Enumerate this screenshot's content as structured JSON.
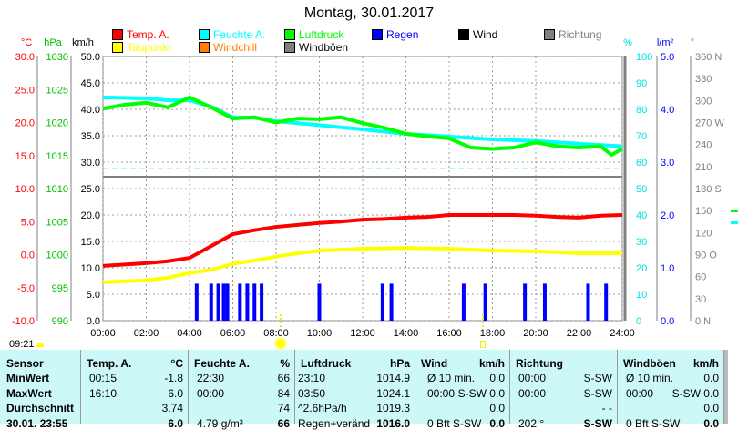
{
  "title": "Montag, 30.01.2017",
  "axis_units": {
    "temp": "°C",
    "pressure": "hPa",
    "wind": "km/h",
    "humidity": "%",
    "rain": "l/m²",
    "direction": "°"
  },
  "legend": [
    {
      "label": "Temp. A.",
      "color": "#ff0000"
    },
    {
      "label": "Feuchte A.",
      "color": "#00ffff"
    },
    {
      "label": "Luftdruck",
      "color": "#00ff00"
    },
    {
      "label": "Regen",
      "color": "#0000ff"
    },
    {
      "label": "Wind",
      "color": "#000000"
    },
    {
      "label": "Richtung",
      "color": "#808080"
    },
    {
      "label": "Taupunkt",
      "color": "#ffff00"
    },
    {
      "label": "Windchill",
      "color": "#ff8000"
    },
    {
      "label": "Windböen",
      "color": "#808080"
    }
  ],
  "chart_data": {
    "type": "line",
    "title": "Montag, 30.01.2017",
    "x_ticks": [
      "00:00",
      "02:00",
      "04:00",
      "06:00",
      "08:00",
      "10:00",
      "12:00",
      "14:00",
      "16:00",
      "18:00",
      "20:00",
      "22:00",
      "24:00"
    ],
    "temp_ticks": [
      "30.0",
      "25.0",
      "20.0",
      "15.0",
      "10.0",
      "5.0",
      "0.0",
      "-5.0",
      "-10.0"
    ],
    "pressure_ticks": [
      "1030",
      "1025",
      "1020",
      "1015",
      "1010",
      "1005",
      "1000",
      "995",
      "990"
    ],
    "wind_ticks": [
      "50.0",
      "45.0",
      "40.0",
      "35.0",
      "30.0",
      "25.0",
      "20.0",
      "15.0",
      "10.0",
      "5.0",
      "0.0"
    ],
    "humidity_ticks": [
      "100",
      "90",
      "80",
      "70",
      "60",
      "50",
      "40",
      "30",
      "20",
      "10",
      "0"
    ],
    "rain_ticks": [
      "5.0",
      "4.0",
      "3.0",
      "2.0",
      "1.0",
      "0.0"
    ],
    "direction_ticks": [
      "360 N",
      "330",
      "300",
      "270 W",
      "240",
      "210",
      "180 S",
      "150",
      "120",
      "90  O",
      "60",
      "30",
      "0    N"
    ],
    "ylim_temp": [
      -10,
      30
    ],
    "ylim_pressure": [
      990,
      1030
    ],
    "ylim_humidity": [
      0,
      100
    ],
    "ylim_rain": [
      0,
      5
    ],
    "series": [
      {
        "name": "Temp. A.",
        "color": "#ff0000",
        "x": [
          0,
          2,
          3,
          4,
          5,
          6,
          7,
          8,
          9,
          10,
          11,
          12,
          13,
          14,
          15,
          16,
          17,
          18,
          19,
          20,
          21,
          22,
          23,
          24
        ],
        "values": [
          -1.7,
          -1.3,
          -1.0,
          -0.5,
          1.3,
          3.1,
          3.7,
          4.2,
          4.5,
          4.8,
          5.0,
          5.3,
          5.4,
          5.6,
          5.7,
          6.0,
          6.0,
          6.0,
          6.0,
          5.9,
          5.7,
          5.6,
          5.9,
          6.0
        ]
      },
      {
        "name": "Taupunkt",
        "color": "#ffff00",
        "x": [
          0,
          2,
          3,
          4,
          5,
          6,
          7,
          8,
          9,
          10,
          12,
          14,
          16,
          18,
          20,
          22,
          24
        ],
        "values": [
          -4.2,
          -3.9,
          -3.5,
          -2.8,
          -2.3,
          -1.4,
          -0.9,
          -0.3,
          0.2,
          0.6,
          0.9,
          1.0,
          0.9,
          0.6,
          0.5,
          0.2,
          0.2
        ]
      },
      {
        "name": "Feuchte A.",
        "color": "#00ffff",
        "x": [
          0,
          2,
          3,
          4,
          5,
          6,
          7,
          8,
          10,
          12,
          14,
          16,
          18,
          20,
          22,
          24
        ],
        "values": [
          84.5,
          84.2,
          83.4,
          83.4,
          81,
          77,
          76.8,
          75.5,
          74,
          72.4,
          70.7,
          69.7,
          68.6,
          68,
          67,
          66
        ]
      },
      {
        "name": "Luftdruck",
        "color": "#00ff00",
        "x": [
          0,
          1,
          2,
          3,
          4,
          5,
          6,
          7,
          8,
          9,
          10,
          11,
          12,
          13,
          14,
          15,
          16,
          17,
          18,
          19,
          20,
          21,
          22,
          23,
          23.5,
          24
        ],
        "values": [
          1022.1,
          1022.7,
          1023,
          1022.3,
          1023.8,
          1022.3,
          1020.6,
          1020.8,
          1020,
          1020.6,
          1020.5,
          1020.8,
          1019.9,
          1019.2,
          1018.3,
          1017.9,
          1017.6,
          1016.2,
          1016,
          1016.2,
          1017,
          1016.4,
          1016.2,
          1016.4,
          1015.1,
          1016
        ]
      },
      {
        "name": "Regen",
        "color": "#0000ff",
        "type": "bar",
        "x": [
          4.33,
          5,
          5.33,
          5.58,
          5.75,
          6.33,
          6.67,
          7,
          7.33,
          10,
          12.92,
          13.33,
          16.67,
          17.67,
          19.5,
          20.42,
          22.42,
          23.25
        ],
        "values": [
          0.7,
          0.7,
          0.7,
          0.7,
          0.7,
          0.7,
          0.7,
          0.7,
          0.7,
          0.7,
          0.7,
          0.7,
          0.7,
          0.7,
          0.7,
          0.7,
          0.7,
          0.7
        ]
      }
    ],
    "reference_line": {
      "pressure": 1013,
      "color": "#00ff00"
    }
  },
  "sun": {
    "sunrise": "09:21"
  },
  "table": {
    "headers": [
      {
        "label": "Sensor"
      },
      {
        "label": "Temp. A.",
        "unit": "°C"
      },
      {
        "label": "Feuchte A.",
        "unit": "%"
      },
      {
        "label": "Luftdruck",
        "unit": "hPa"
      },
      {
        "label": "Wind",
        "unit": "km/h"
      },
      {
        "label": "Richtung",
        "unit": ""
      },
      {
        "label": "Windböen",
        "unit": "km/h"
      }
    ],
    "rows": [
      {
        "label": "MinWert",
        "cells": [
          [
            "00:15",
            "-1.8"
          ],
          [
            "22:30",
            "66"
          ],
          [
            "23:10",
            "1014.9"
          ],
          [
            "Ø 10 min.",
            "0.0"
          ],
          [
            "00:00",
            "S-SW"
          ],
          [
            "Ø 10 min.",
            "0.0"
          ]
        ]
      },
      {
        "label": "MaxWert",
        "cells": [
          [
            "16:10",
            "6.0"
          ],
          [
            "00:00",
            "84"
          ],
          [
            "03:50",
            "1024.1"
          ],
          [
            "00:00",
            "S-SW 0.0"
          ],
          [
            "00:00",
            "S-SW"
          ],
          [
            "00:00",
            "S-SW 0.0"
          ]
        ]
      },
      {
        "label": "Durchschnitt",
        "cells": [
          [
            "",
            "3.74"
          ],
          [
            "",
            "74"
          ],
          [
            "^2.6hPa/h",
            "1019.3"
          ],
          [
            "",
            "0.0"
          ],
          [
            "",
            "- -"
          ],
          [
            "",
            "0.0"
          ]
        ]
      },
      {
        "label": "30.01. 23:55",
        "cells": [
          [
            "",
            "6.0"
          ],
          [
            "4.79 g/m³",
            "66"
          ],
          [
            "Regen+veränd",
            "1016.0"
          ],
          [
            "0 Bft S-SW",
            "0.0"
          ],
          [
            "202 °",
            "S-SW"
          ],
          [
            "0 Bft S-SW",
            "0.0"
          ]
        ]
      }
    ]
  }
}
